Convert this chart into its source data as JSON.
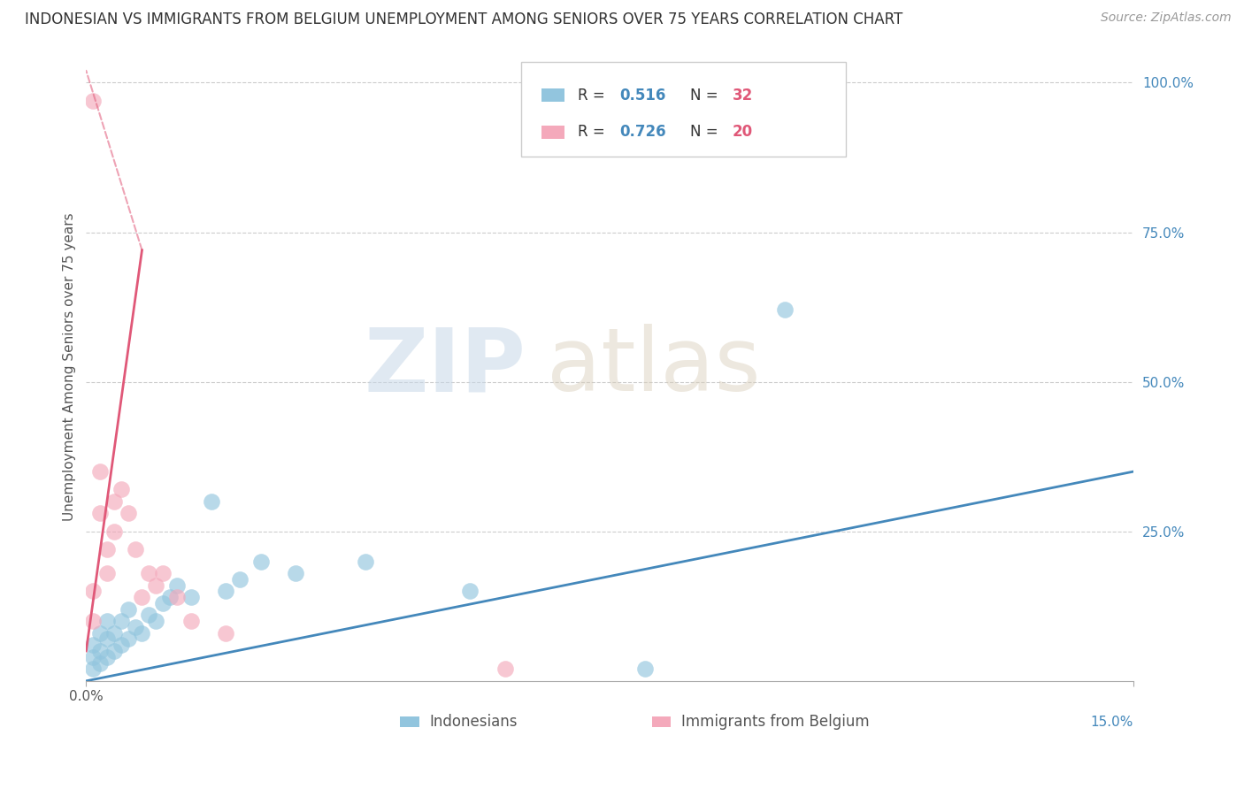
{
  "title": "INDONESIAN VS IMMIGRANTS FROM BELGIUM UNEMPLOYMENT AMONG SENIORS OVER 75 YEARS CORRELATION CHART",
  "source": "Source: ZipAtlas.com",
  "ylabel": "Unemployment Among Seniors over 75 years",
  "y_ticks": [
    0.0,
    0.25,
    0.5,
    0.75,
    1.0
  ],
  "y_tick_labels_right": [
    "",
    "25.0%",
    "50.0%",
    "75.0%",
    "100.0%"
  ],
  "x_tick_labels": [
    "0.0%",
    "15.0%"
  ],
  "legend_R1": "0.516",
  "legend_N1": "32",
  "legend_R2": "0.726",
  "legend_N2": "20",
  "legend_label1": "Indonesians",
  "legend_label2": "Immigrants from Belgium",
  "blue_color": "#92C5DE",
  "pink_color": "#F4A9BB",
  "blue_line_color": "#4488BB",
  "pink_line_color": "#E05878",
  "watermark_zip": "ZIP",
  "watermark_atlas": "atlas",
  "indonesian_x": [
    0.001,
    0.001,
    0.001,
    0.002,
    0.002,
    0.002,
    0.003,
    0.003,
    0.003,
    0.004,
    0.004,
    0.005,
    0.005,
    0.006,
    0.006,
    0.007,
    0.008,
    0.009,
    0.01,
    0.011,
    0.012,
    0.013,
    0.015,
    0.018,
    0.02,
    0.022,
    0.025,
    0.03,
    0.04,
    0.055,
    0.08,
    0.1
  ],
  "indonesian_y": [
    0.02,
    0.04,
    0.06,
    0.03,
    0.05,
    0.08,
    0.04,
    0.07,
    0.1,
    0.05,
    0.08,
    0.06,
    0.1,
    0.07,
    0.12,
    0.09,
    0.08,
    0.11,
    0.1,
    0.13,
    0.14,
    0.16,
    0.14,
    0.3,
    0.15,
    0.17,
    0.2,
    0.18,
    0.2,
    0.15,
    0.02,
    0.62
  ],
  "belgium_x": [
    0.001,
    0.001,
    0.001,
    0.002,
    0.002,
    0.003,
    0.003,
    0.004,
    0.004,
    0.005,
    0.006,
    0.007,
    0.008,
    0.009,
    0.01,
    0.011,
    0.013,
    0.015,
    0.02,
    0.06
  ],
  "belgium_y": [
    0.97,
    0.15,
    0.1,
    0.35,
    0.28,
    0.22,
    0.18,
    0.3,
    0.25,
    0.32,
    0.28,
    0.22,
    0.14,
    0.18,
    0.16,
    0.18,
    0.14,
    0.1,
    0.08,
    0.02
  ],
  "blue_trend": [
    0.0,
    0.0,
    0.15,
    0.35
  ],
  "pink_solid_trend": [
    0.0,
    0.05,
    0.008,
    0.72
  ],
  "pink_dashed_trend": [
    0.008,
    0.72,
    0.0,
    1.02
  ]
}
